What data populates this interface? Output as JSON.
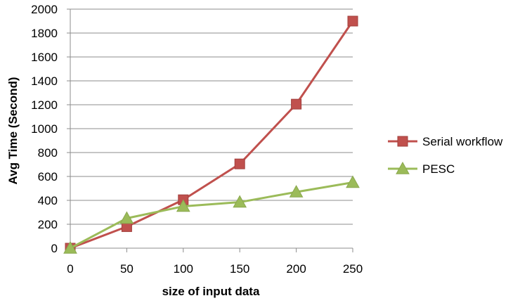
{
  "chart_data": {
    "type": "line",
    "title": "",
    "xlabel": "size of input data",
    "ylabel": "Avg Time (Second)",
    "x": [
      0,
      50,
      100,
      150,
      200,
      250
    ],
    "xlim": [
      0,
      250
    ],
    "ylim": [
      0,
      2000
    ],
    "xticks": [
      0,
      50,
      100,
      150,
      200,
      250
    ],
    "yticks": [
      0,
      200,
      400,
      600,
      800,
      1000,
      1200,
      1400,
      1600,
      1800,
      2000
    ],
    "grid": "horizontal",
    "legend": "right",
    "series": [
      {
        "name": "Serial workflow",
        "values": [
          0,
          180,
          405,
          705,
          1205,
          1900
        ],
        "color": "#C0504D",
        "marker": "square"
      },
      {
        "name": "PESC",
        "values": [
          0,
          250,
          350,
          385,
          470,
          550
        ],
        "color": "#9BBB59",
        "marker": "triangle"
      }
    ]
  }
}
